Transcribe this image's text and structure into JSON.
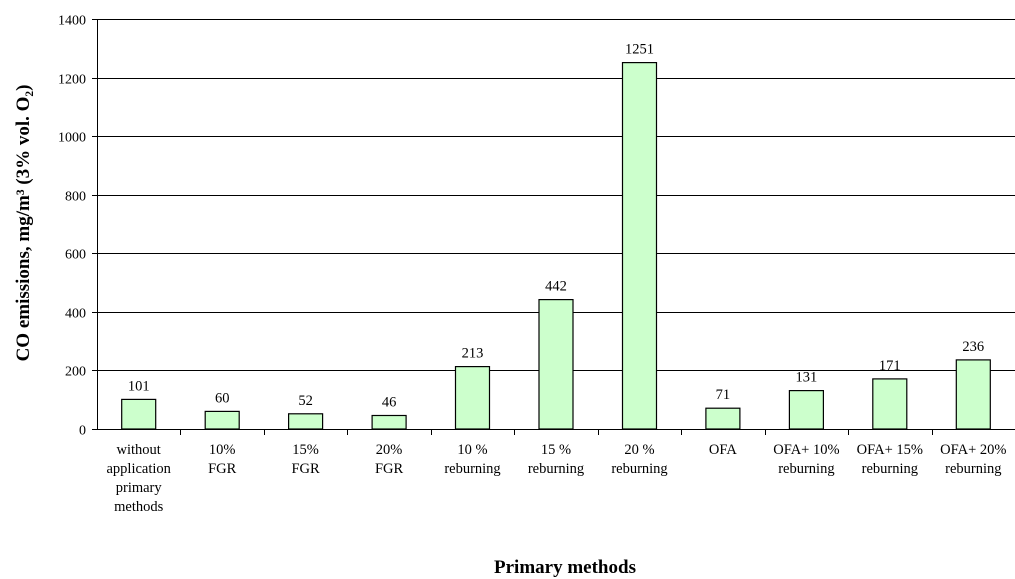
{
  "chart_data": {
    "type": "bar",
    "ylabel": "CO  emissions,  mg/m³ (3% vol. O₂)",
    "xlabel": "Primary  methods",
    "ylim": [
      0,
      1400
    ],
    "yticks": [
      0,
      200,
      400,
      600,
      800,
      1000,
      1200,
      1400
    ],
    "grid": true,
    "bar_color": "#ccffcc",
    "categories": [
      [
        "without",
        "application",
        "primary",
        "methods"
      ],
      [
        "10%",
        "FGR"
      ],
      [
        "15%",
        "FGR"
      ],
      [
        "20%",
        "FGR"
      ],
      [
        "10 %",
        "reburning"
      ],
      [
        "15 %",
        "reburning"
      ],
      [
        "20 %",
        "reburning"
      ],
      [
        "OFA"
      ],
      [
        "OFA+ 10%",
        "reburning"
      ],
      [
        "OFA+ 15%",
        "reburning"
      ],
      [
        "OFA+ 20%",
        "reburning"
      ]
    ],
    "values": [
      101,
      60,
      52,
      46,
      213,
      442,
      1251,
      71,
      131,
      171,
      236
    ]
  }
}
